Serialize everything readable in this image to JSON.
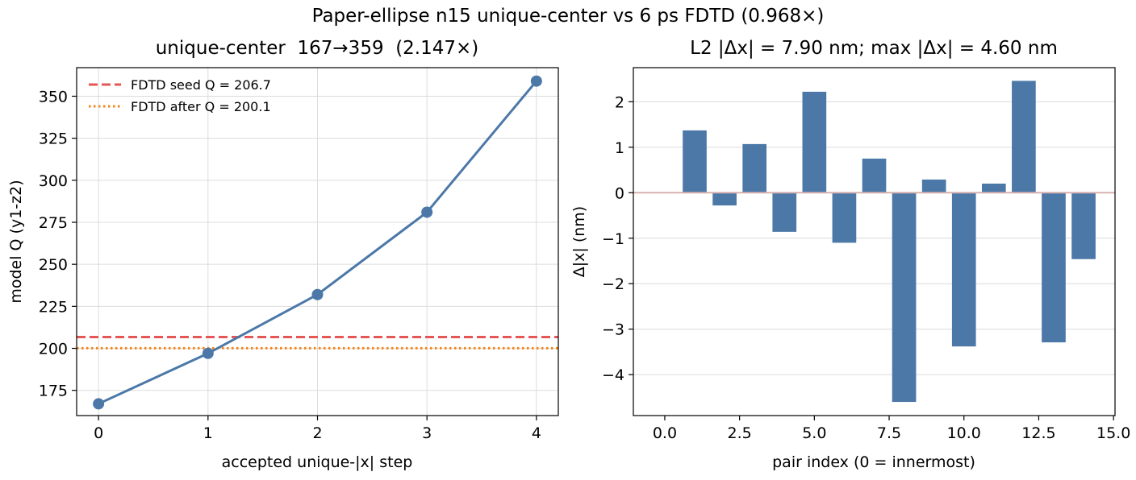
{
  "suptitle": "Paper-ellipse n15 unique-center vs 6 ps FDTD (0.968×)",
  "colors": {
    "series": "#4c78a8",
    "seed_line": "#e45756",
    "after_line": "#f58518",
    "zero_line": "#d6b0ad",
    "grid": "#dcdcdc"
  },
  "chart_data": [
    {
      "type": "line",
      "title": "unique-center  167→359  (2.147×)",
      "xlabel": "accepted unique-|x| step",
      "ylabel": "model Q (y1-z2)",
      "xlim": [
        -0.2,
        4.2
      ],
      "ylim": [
        160,
        367
      ],
      "xticks": [
        0,
        1,
        2,
        3,
        4
      ],
      "yticks": [
        175,
        200,
        225,
        250,
        275,
        300,
        325,
        350
      ],
      "grid": true,
      "legend_position": "top-left",
      "series": [
        {
          "x": [
            0,
            1,
            2,
            3,
            4
          ],
          "values": [
            167,
            197,
            232,
            281,
            359
          ]
        }
      ],
      "hlines": [
        {
          "name": "FDTD seed Q = 206.7",
          "y": 206.7,
          "style": "dashed",
          "color": "#e45756"
        },
        {
          "name": "FDTD after Q = 200.1",
          "y": 200.1,
          "style": "dotted",
          "color": "#f58518"
        }
      ]
    },
    {
      "type": "bar",
      "title": "L2 |Δx| = 7.90 nm; max |Δx| = 4.60 nm",
      "xlabel": "pair index (0 = innermost)",
      "ylabel": "Δ|x| (nm)",
      "xlim": [
        -1.05,
        15.05
      ],
      "ylim": [
        -4.9,
        2.75
      ],
      "xticks": [
        "0.0",
        "2.5",
        "5.0",
        "7.5",
        "10.0",
        "12.5",
        "15.0"
      ],
      "yticks": [
        -4,
        -3,
        -2,
        -1,
        0,
        1,
        2
      ],
      "grid": true,
      "x": [
        1,
        2,
        3,
        4,
        5,
        6,
        7,
        8,
        9,
        10,
        11,
        12,
        13,
        14
      ],
      "values": [
        1.37,
        -0.28,
        1.07,
        -0.86,
        2.22,
        -1.1,
        0.75,
        -4.6,
        0.29,
        -3.38,
        0.2,
        2.46,
        -3.29,
        -1.46
      ]
    }
  ]
}
